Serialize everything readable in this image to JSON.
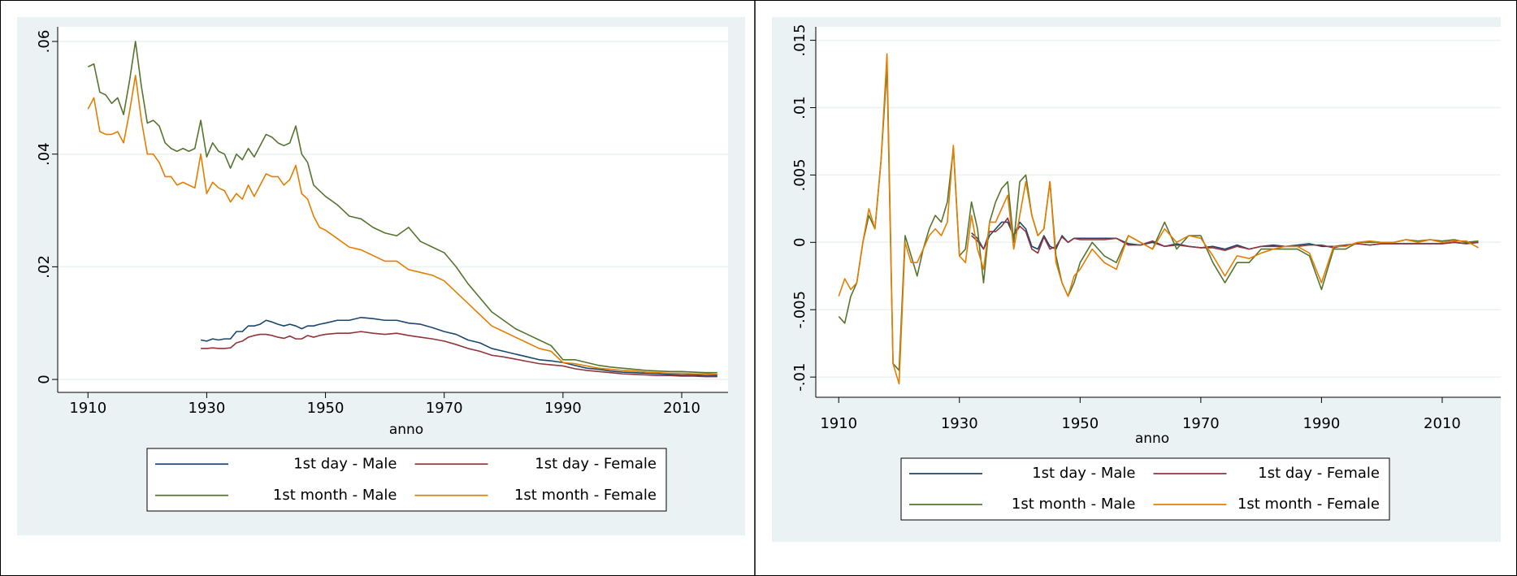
{
  "chart_data": [
    {
      "type": "line",
      "x_label": "anno",
      "x": [
        1910,
        1911,
        1912,
        1913,
        1914,
        1915,
        1916,
        1917,
        1918,
        1919,
        1920,
        1921,
        1922,
        1923,
        1924,
        1925,
        1926,
        1927,
        1928,
        1929,
        1930,
        1931,
        1932,
        1933,
        1934,
        1935,
        1936,
        1937,
        1938,
        1939,
        1940,
        1941,
        1942,
        1943,
        1944,
        1945,
        1946,
        1947,
        1948,
        1949,
        1950,
        1952,
        1954,
        1956,
        1958,
        1960,
        1962,
        1964,
        1966,
        1968,
        1970,
        1972,
        1974,
        1976,
        1978,
        1980,
        1982,
        1984,
        1986,
        1988,
        1990,
        1992,
        1994,
        1996,
        1998,
        2000,
        2002,
        2004,
        2006,
        2008,
        2010,
        2012,
        2014,
        2016
      ],
      "xlim": [
        1904.9,
        2017.8
      ],
      "xticks": [
        1910,
        1930,
        1950,
        1970,
        1990,
        2010
      ],
      "ylim": [
        -0.0023,
        0.0626
      ],
      "yticks": [
        0,
        {
          "value": 0.02,
          "label": ".02"
        },
        {
          "value": 0.04,
          "label": ".04"
        },
        {
          "value": 0.06,
          "label": ".06"
        }
      ],
      "grid": true,
      "legend": "bottom",
      "series": [
        {
          "name": "1st day - Male",
          "color": "#1a476f",
          "values": [
            null,
            null,
            null,
            null,
            null,
            null,
            null,
            null,
            null,
            null,
            null,
            null,
            null,
            null,
            null,
            null,
            null,
            null,
            null,
            0.007,
            0.0068,
            0.0072,
            0.007,
            0.0072,
            0.0072,
            0.0085,
            0.0085,
            0.0095,
            0.0095,
            0.0098,
            0.0105,
            0.0102,
            0.0098,
            0.0095,
            0.0098,
            0.0095,
            0.009,
            0.0095,
            0.0095,
            0.0098,
            0.01,
            0.0105,
            0.0105,
            0.011,
            0.0108,
            0.0105,
            0.0105,
            0.01,
            0.0098,
            0.0092,
            0.0085,
            0.008,
            0.007,
            0.0065,
            0.0055,
            0.005,
            0.0045,
            0.004,
            0.0035,
            0.0033,
            0.003,
            0.0025,
            0.002,
            0.0018,
            0.0015,
            0.0013,
            0.0012,
            0.0011,
            0.001,
            0.0009,
            0.0008,
            0.0008,
            0.0007,
            0.0007
          ]
        },
        {
          "name": "1st day - Female",
          "color": "#90353b",
          "values": [
            null,
            null,
            null,
            null,
            null,
            null,
            null,
            null,
            null,
            null,
            null,
            null,
            null,
            null,
            null,
            null,
            null,
            null,
            null,
            0.0055,
            0.0055,
            0.0056,
            0.0055,
            0.0055,
            0.0056,
            0.0065,
            0.0068,
            0.0075,
            0.0078,
            0.008,
            0.008,
            0.0078,
            0.0075,
            0.0073,
            0.0077,
            0.0072,
            0.0072,
            0.0078,
            0.0075,
            0.0078,
            0.008,
            0.0082,
            0.0082,
            0.0085,
            0.0082,
            0.008,
            0.0082,
            0.0078,
            0.0075,
            0.0072,
            0.0068,
            0.0062,
            0.0055,
            0.005,
            0.0043,
            0.004,
            0.0036,
            0.0032,
            0.0028,
            0.0026,
            0.0024,
            0.0019,
            0.0016,
            0.0014,
            0.0012,
            0.001,
            0.0009,
            0.0008,
            0.0007,
            0.0007,
            0.0006,
            0.0006,
            0.0005,
            0.0005
          ]
        },
        {
          "name": "1st month - Male",
          "color": "#55752f",
          "values": [
            0.0555,
            0.056,
            0.051,
            0.0505,
            0.049,
            0.05,
            0.047,
            0.053,
            0.06,
            0.052,
            0.0455,
            0.046,
            0.045,
            0.042,
            0.041,
            0.0405,
            0.041,
            0.0405,
            0.041,
            0.046,
            0.0395,
            0.042,
            0.0405,
            0.04,
            0.0375,
            0.04,
            0.039,
            0.041,
            0.0395,
            0.0415,
            0.0435,
            0.043,
            0.042,
            0.0415,
            0.042,
            0.045,
            0.04,
            0.0385,
            0.0345,
            0.0335,
            0.0325,
            0.031,
            0.029,
            0.0285,
            0.027,
            0.026,
            0.0255,
            0.027,
            0.0245,
            0.0235,
            0.0225,
            0.02,
            0.017,
            0.0145,
            0.012,
            0.0105,
            0.009,
            0.008,
            0.007,
            0.006,
            0.0035,
            0.0035,
            0.003,
            0.0025,
            0.0022,
            0.002,
            0.0018,
            0.0016,
            0.0015,
            0.0014,
            0.0014,
            0.0013,
            0.0012,
            0.0012
          ]
        },
        {
          "name": "1st month - Female",
          "color": "#e37e00",
          "values": [
            0.048,
            0.05,
            0.044,
            0.0435,
            0.0435,
            0.044,
            0.042,
            0.0475,
            0.054,
            0.046,
            0.04,
            0.04,
            0.0385,
            0.036,
            0.036,
            0.0345,
            0.035,
            0.0345,
            0.034,
            0.04,
            0.033,
            0.035,
            0.034,
            0.0335,
            0.0315,
            0.033,
            0.032,
            0.0345,
            0.0325,
            0.0345,
            0.0365,
            0.036,
            0.036,
            0.0345,
            0.0355,
            0.038,
            0.033,
            0.032,
            0.029,
            0.027,
            0.0265,
            0.025,
            0.0235,
            0.023,
            0.022,
            0.021,
            0.021,
            0.0195,
            0.019,
            0.0185,
            0.0175,
            0.0155,
            0.0135,
            0.0115,
            0.0095,
            0.0085,
            0.0075,
            0.0065,
            0.0055,
            0.005,
            0.003,
            0.0028,
            0.0024,
            0.002,
            0.0018,
            0.0016,
            0.0015,
            0.0013,
            0.0012,
            0.0011,
            0.0011,
            0.001,
            0.001,
            0.0009
          ]
        }
      ]
    },
    {
      "type": "line",
      "x_label": "anno",
      "x": [
        1910,
        1911,
        1912,
        1913,
        1914,
        1915,
        1916,
        1917,
        1918,
        1919,
        1920,
        1921,
        1922,
        1923,
        1924,
        1925,
        1926,
        1927,
        1928,
        1929,
        1930,
        1931,
        1932,
        1933,
        1934,
        1935,
        1936,
        1937,
        1938,
        1939,
        1940,
        1941,
        1942,
        1943,
        1944,
        1945,
        1946,
        1947,
        1948,
        1949,
        1950,
        1952,
        1954,
        1956,
        1958,
        1960,
        1962,
        1964,
        1966,
        1968,
        1970,
        1972,
        1974,
        1976,
        1978,
        1980,
        1982,
        1984,
        1986,
        1988,
        1990,
        1992,
        1994,
        1996,
        1998,
        2000,
        2002,
        2004,
        2006,
        2008,
        2010,
        2012,
        2014,
        2016
      ],
      "xlim": [
        1906.2,
        2019.7
      ],
      "xticks": [
        1910,
        1930,
        1950,
        1970,
        1990,
        2010
      ],
      "ylim": [
        -0.0115,
        0.016
      ],
      "yticks": [
        {
          "value": -0.01,
          "label": "-.01"
        },
        {
          "value": -0.005,
          "label": "-.005"
        },
        0,
        {
          "value": 0.005,
          "label": ".005"
        },
        {
          "value": 0.01,
          "label": ".01"
        },
        {
          "value": 0.015,
          "label": ".015"
        }
      ],
      "grid": true,
      "legend": "bottom",
      "series": [
        {
          "name": "1st day - Male",
          "color": "#1a476f",
          "values": [
            null,
            null,
            null,
            null,
            null,
            null,
            null,
            null,
            null,
            null,
            null,
            null,
            null,
            null,
            null,
            null,
            null,
            null,
            null,
            null,
            null,
            null,
            0.0007,
            0.0003,
            -0.0005,
            0.0005,
            0.001,
            0.0015,
            0.0015,
            0.0005,
            0.0015,
            0.001,
            -0.0003,
            -0.0005,
            0.0005,
            -0.0003,
            -0.0005,
            0.0005,
            0,
            0.0003,
            0.0003,
            0.0003,
            0.0003,
            0.0003,
            -0.0001,
            -0.0002,
            0,
            -0.0003,
            -0.0001,
            -0.0003,
            -0.0004,
            -0.0003,
            -0.0005,
            -0.0002,
            -0.0005,
            -0.0003,
            -0.0002,
            -0.0003,
            -0.0002,
            -0.0001,
            -0.0003,
            -0.0003,
            -0.0002,
            -0.0001,
            -0.0002,
            -0.0001,
            -0.0001,
            -0.0001,
            -0.0001,
            -0.0001,
            -0.0001,
            0,
            -0.0001,
            0
          ]
        },
        {
          "name": "1st day - Female",
          "color": "#90353b",
          "values": [
            null,
            null,
            null,
            null,
            null,
            null,
            null,
            null,
            null,
            null,
            null,
            null,
            null,
            null,
            null,
            null,
            null,
            null,
            null,
            null,
            null,
            null,
            0.0005,
            0.0001,
            -0.0005,
            0.0008,
            0.0008,
            0.0012,
            0.0018,
            0.0005,
            0.0012,
            0.0008,
            -0.0005,
            -0.0008,
            0.0004,
            -0.0005,
            -0.0003,
            0.0004,
            0,
            0.0003,
            0.0002,
            0.0002,
            0.0002,
            0.0003,
            -0.0002,
            -0.0002,
            0.0001,
            -0.0003,
            -0.0002,
            -0.0003,
            -0.0004,
            -0.0004,
            -0.0006,
            -0.0003,
            -0.0005,
            -0.0003,
            -0.0003,
            -0.0003,
            -0.0003,
            -0.0002,
            -0.0002,
            -0.0004,
            -0.0002,
            -0.0001,
            -0.0002,
            -0.0001,
            -0.0001,
            -0.0001,
            -0.0001,
            -0.0001,
            -0.0001,
            0,
            -0.0001,
            0
          ]
        },
        {
          "name": "1st month - Male",
          "color": "#55752f",
          "values": [
            -0.0055,
            -0.006,
            -0.004,
            -0.003,
            0,
            0.002,
            0.001,
            0.006,
            0.013,
            -0.009,
            -0.0095,
            0.0005,
            -0.001,
            -0.0025,
            -0.0005,
            0.001,
            0.002,
            0.0015,
            0.003,
            0.007,
            -0.001,
            -0.0005,
            0.003,
            0.001,
            -0.003,
            0.0015,
            0.003,
            0.004,
            0.0045,
            0,
            0.0045,
            0.005,
            0.002,
            0.0005,
            0.001,
            0.0045,
            -0.001,
            -0.003,
            -0.004,
            -0.003,
            -0.0015,
            0,
            -0.001,
            -0.0015,
            0.0005,
            0,
            -0.0005,
            0.0015,
            -0.0005,
            0.0005,
            0.0005,
            -0.0015,
            -0.003,
            -0.0015,
            -0.0015,
            -0.0005,
            -0.0005,
            -0.0005,
            -0.0005,
            -0.001,
            -0.0035,
            -0.0005,
            -0.0005,
            0,
            0,
            0,
            0,
            0.0002,
            0.0001,
            0.0002,
            0.0001,
            0.0002,
            0,
            0.0001
          ]
        },
        {
          "name": "1st month - Female",
          "color": "#e37e00",
          "values": [
            -0.004,
            -0.0027,
            -0.0035,
            -0.003,
            0,
            0.0025,
            0.001,
            0.006,
            0.014,
            -0.009,
            -0.0105,
            0,
            -0.0015,
            -0.0015,
            -0.0005,
            0.0005,
            0.001,
            0.0005,
            0.0015,
            0.0072,
            -0.001,
            -0.0015,
            0.002,
            -0.0005,
            -0.002,
            0.0015,
            0.0015,
            0.0025,
            0.0035,
            -0.0005,
            0.002,
            0.0045,
            0.002,
            0.0005,
            0.001,
            0.0045,
            -0.0015,
            -0.003,
            -0.004,
            -0.0025,
            -0.002,
            -0.0005,
            -0.0015,
            -0.002,
            0.0005,
            0,
            -0.0005,
            0.001,
            0,
            0.0005,
            0.0003,
            -0.001,
            -0.0025,
            -0.001,
            -0.0012,
            -0.0008,
            -0.0005,
            -0.0003,
            -0.0003,
            -0.0008,
            -0.003,
            -0.0003,
            -0.0003,
            0,
            0.0001,
            0,
            0,
            0.0002,
            0,
            0.0002,
            0,
            0.0001,
            0.0001,
            -0.0004
          ]
        }
      ]
    }
  ]
}
